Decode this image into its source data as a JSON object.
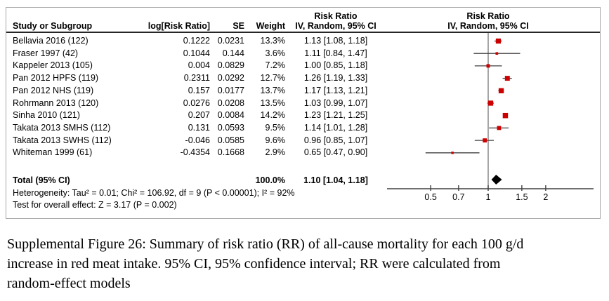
{
  "header": {
    "col_study": "Study or Subgroup",
    "col_log_rr": "log[Risk Ratio]",
    "col_se": "SE",
    "col_weight": "Weight",
    "col_rr_title": "Risk Ratio",
    "col_rr_sub": "IV, Random, 95% CI",
    "plot_rr_title": "Risk Ratio",
    "plot_rr_sub": "IV, Random, 95% CI"
  },
  "chart_data": {
    "type": "scatter",
    "subtype": "forest-plot",
    "x_scale": "log",
    "x_ticks": [
      "0.5",
      "0.7",
      "1",
      "1.5",
      "2"
    ],
    "ref_line_x": 1,
    "marker_color": "#CC0000",
    "line_color": "#404040",
    "ref_line_color": "#808080",
    "diamond_color": "#000000",
    "studies": [
      {
        "label": "Bellavia 2016 (122)",
        "log_rr": "0.1222",
        "se": "0.0231",
        "weight": "13.3%",
        "weight_pct": 13.3,
        "ci_text": "1.13 [1.08, 1.18]",
        "rr": 1.13,
        "ci_lo": 1.08,
        "ci_hi": 1.18
      },
      {
        "label": "Fraser 1997 (42)",
        "log_rr": "0.1044",
        "se": "0.144",
        "weight": "3.6%",
        "weight_pct": 3.6,
        "ci_text": "1.11 [0.84, 1.47]",
        "rr": 1.11,
        "ci_lo": 0.84,
        "ci_hi": 1.47
      },
      {
        "label": "Kappeler 2013 (105)",
        "log_rr": "0.004",
        "se": "0.0829",
        "weight": "7.2%",
        "weight_pct": 7.2,
        "ci_text": "1.00 [0.85, 1.18]",
        "rr": 1.0,
        "ci_lo": 0.85,
        "ci_hi": 1.18
      },
      {
        "label": "Pan 2012 HPFS (119)",
        "log_rr": "0.2311",
        "se": "0.0292",
        "weight": "12.7%",
        "weight_pct": 12.7,
        "ci_text": "1.26 [1.19, 1.33]",
        "rr": 1.26,
        "ci_lo": 1.19,
        "ci_hi": 1.33
      },
      {
        "label": "Pan 2012 NHS (119)",
        "log_rr": "0.157",
        "se": "0.0177",
        "weight": "13.7%",
        "weight_pct": 13.7,
        "ci_text": "1.17 [1.13, 1.21]",
        "rr": 1.17,
        "ci_lo": 1.13,
        "ci_hi": 1.21
      },
      {
        "label": "Rohrmann 2013 (120)",
        "log_rr": "0.0276",
        "se": "0.0208",
        "weight": "13.5%",
        "weight_pct": 13.5,
        "ci_text": "1.03 [0.99, 1.07]",
        "rr": 1.03,
        "ci_lo": 0.99,
        "ci_hi": 1.07
      },
      {
        "label": "Sinha 2010 (121)",
        "log_rr": "0.207",
        "se": "0.0084",
        "weight": "14.2%",
        "weight_pct": 14.2,
        "ci_text": "1.23 [1.21, 1.25]",
        "rr": 1.23,
        "ci_lo": 1.21,
        "ci_hi": 1.25
      },
      {
        "label": "Takata 2013 SMHS (112)",
        "log_rr": "0.131",
        "se": "0.0593",
        "weight": "9.5%",
        "weight_pct": 9.5,
        "ci_text": "1.14 [1.01, 1.28]",
        "rr": 1.14,
        "ci_lo": 1.01,
        "ci_hi": 1.28
      },
      {
        "label": "Takata 2013 SWHS (112)",
        "log_rr": "-0.046",
        "se": "0.0585",
        "weight": "9.6%",
        "weight_pct": 9.6,
        "ci_text": "0.96 [0.85, 1.07]",
        "rr": 0.96,
        "ci_lo": 0.85,
        "ci_hi": 1.07
      },
      {
        "label": "Whiteman 1999 (61)",
        "log_rr": "-0.4354",
        "se": "0.1668",
        "weight": "2.9%",
        "weight_pct": 2.9,
        "ci_text": "0.65 [0.47, 0.90]",
        "rr": 0.65,
        "ci_lo": 0.47,
        "ci_hi": 0.9
      }
    ],
    "total": {
      "label": "Total (95% CI)",
      "weight": "100.0%",
      "ci_text": "1.10 [1.04, 1.18]",
      "rr": 1.1,
      "ci_lo": 1.04,
      "ci_hi": 1.18
    }
  },
  "footer": {
    "heterogeneity": "Heterogeneity: Tau² = 0.01; Chi² = 106.92, df = 9 (P < 0.00001); I² = 92%",
    "overall_effect": "Test for overall effect: Z = 3.17 (P = 0.002)"
  },
  "caption": {
    "lines": [
      "Supplemental Figure 26: Summary of risk ratio (RR) of all-cause mortality for each 100 g/d",
      "increase in red meat intake. 95% CI, 95% confidence interval; RR were calculated from",
      "random-effect models"
    ]
  }
}
